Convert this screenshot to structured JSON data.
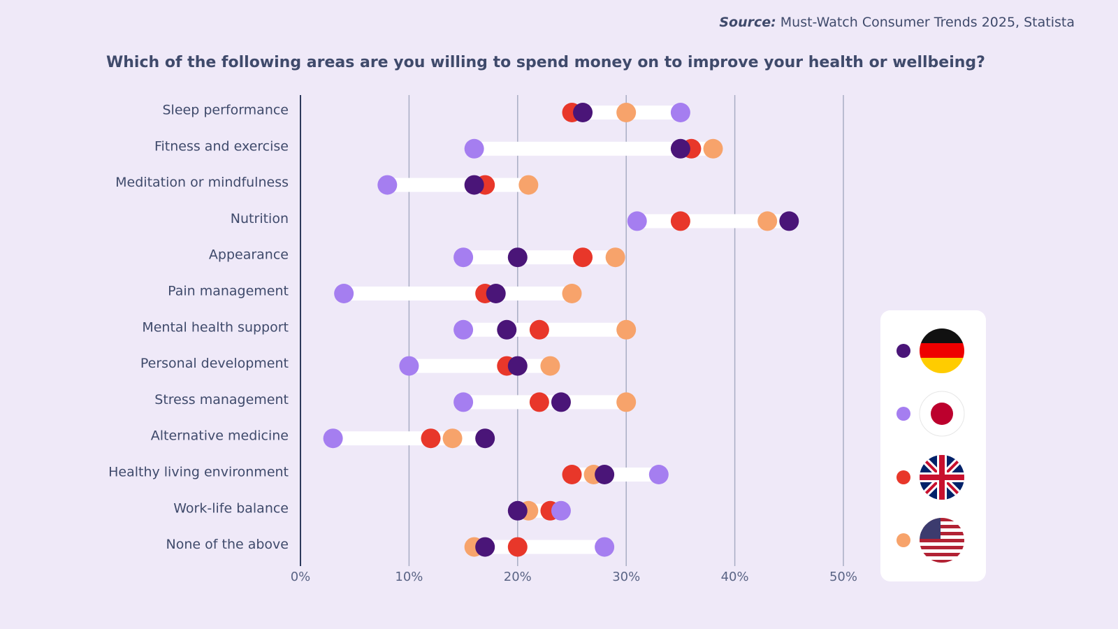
{
  "chart_data": {
    "type": "dot",
    "source_label": "Source:",
    "source": "Must-Watch Consumer Trends 2025, Statista",
    "title": "Which of the following areas are you willing to spend money on to improve your health or wellbeing?",
    "categories": [
      "Sleep performance",
      "Fitness and exercise",
      "Meditation or mindfulness",
      "Nutrition",
      "Appearance",
      "Pain management",
      "Mental health support",
      "Personal development",
      "Stress management",
      "Alternative medicine",
      "Healthy living environment",
      "Work-life balance",
      "None of the above"
    ],
    "series": [
      {
        "color": "#e8372a",
        "values": [
          25,
          36,
          17,
          35,
          26,
          17,
          22,
          19,
          22,
          12,
          25,
          23,
          20
        ]
      },
      {
        "color": "#f7a36b",
        "values": [
          30,
          38,
          21,
          43,
          29,
          25,
          30,
          23,
          30,
          14,
          27,
          21,
          16
        ]
      },
      {
        "color": "#a57ef0",
        "values": [
          35,
          16,
          8,
          31,
          15,
          4,
          15,
          10,
          15,
          3,
          33,
          24,
          28
        ]
      },
      {
        "color": "#4a1578",
        "values": [
          26,
          35,
          16,
          45,
          20,
          18,
          19,
          20,
          24,
          17,
          28,
          20,
          17
        ]
      }
    ],
    "xlim": [
      0,
      50
    ],
    "xticks": [
      {
        "value": 0,
        "label": "0%"
      },
      {
        "value": 10,
        "label": "10%"
      },
      {
        "value": 20,
        "label": "20%"
      },
      {
        "value": 30,
        "label": "30%"
      },
      {
        "value": 40,
        "label": "40%"
      },
      {
        "value": 50,
        "label": "50%"
      }
    ],
    "grid": true
  }
}
